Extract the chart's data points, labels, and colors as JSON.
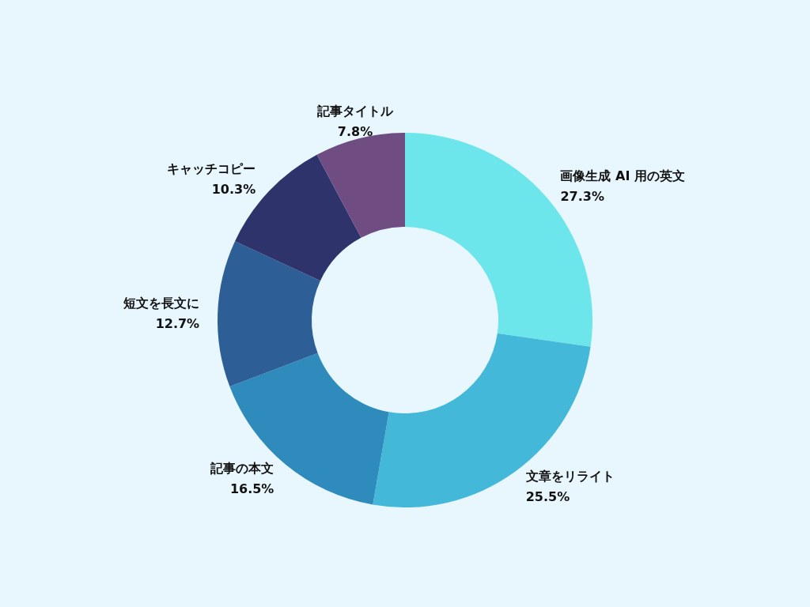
{
  "chart_data": {
    "type": "donut",
    "categories": [
      "画像生成 AI 用の英文",
      "文章をリライト",
      "記事の本文",
      "短文を長文に",
      "キャッチコピー",
      "記事タイトル"
    ],
    "values": [
      27.3,
      25.5,
      16.5,
      12.7,
      10.3,
      7.8
    ],
    "value_labels": [
      "27.3%",
      "25.5%",
      "16.5%",
      "12.7%",
      "10.3%",
      "7.8%"
    ],
    "colors": [
      "#6ce6ea",
      "#43b8d8",
      "#2e8bbb",
      "#2d5e96",
      "#2f336b",
      "#6f4c82"
    ],
    "legend": false
  }
}
